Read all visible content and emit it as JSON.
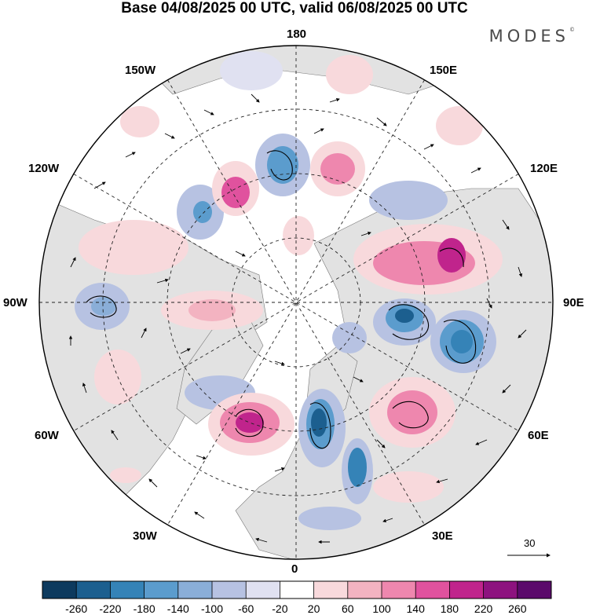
{
  "title": "Base 04/08/2025 00 UTC, valid 06/08/2025 00 UTC",
  "brand": "MODES",
  "brand_mark": "©",
  "longitude_labels": {
    "top": "180",
    "bottom": "0",
    "left": "90W",
    "right": "90E",
    "upper_left_1": "150W",
    "upper_left_2": "120W",
    "upper_right_1": "150E",
    "upper_right_2": "120E",
    "lower_left_1": "60W",
    "lower_left_2": "30W",
    "lower_right_1": "60E",
    "lower_right_2": "30E"
  },
  "vector_scale": {
    "label": "30",
    "value": 30
  },
  "colorbar": {
    "ticks": [
      "-260",
      "-220",
      "-180",
      "-140",
      "-100",
      "-60",
      "-20",
      "20",
      "60",
      "100",
      "140",
      "180",
      "220",
      "260"
    ],
    "colors": [
      "#0d3a5e",
      "#1c5f8f",
      "#3583b7",
      "#5b9ccd",
      "#8aaed8",
      "#b7c2e2",
      "#e0e1f1",
      "#ffffff",
      "#f8d9dc",
      "#f3b3c1",
      "#ee87ae",
      "#e0529e",
      "#c0248c",
      "#8d127f",
      "#5b0a6b"
    ]
  },
  "colors": {
    "land": "#e2e2e2",
    "ocean": "#ffffff",
    "grid": "#222222"
  }
}
